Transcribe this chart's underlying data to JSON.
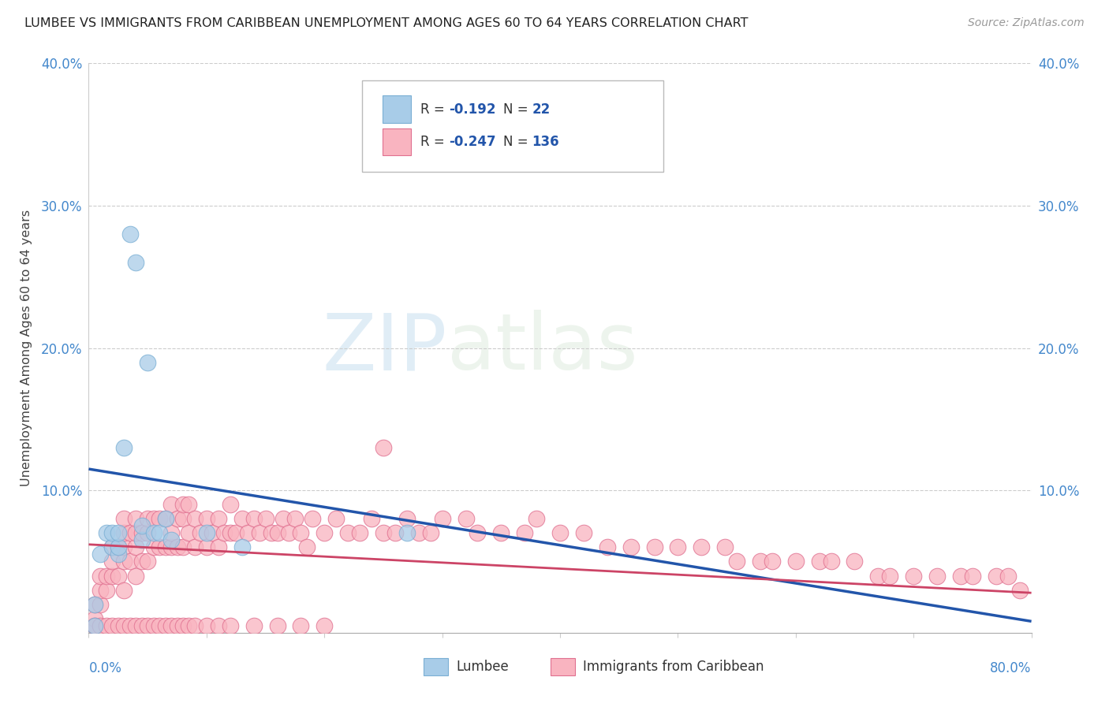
{
  "title": "LUMBEE VS IMMIGRANTS FROM CARIBBEAN UNEMPLOYMENT AMONG AGES 60 TO 64 YEARS CORRELATION CHART",
  "source": "Source: ZipAtlas.com",
  "ylabel": "Unemployment Among Ages 60 to 64 years",
  "xlim": [
    0.0,
    0.8
  ],
  "ylim": [
    0.0,
    0.4
  ],
  "yticks": [
    0.0,
    0.1,
    0.2,
    0.3,
    0.4
  ],
  "ytick_labels": [
    "",
    "10.0%",
    "20.0%",
    "30.0%",
    "40.0%"
  ],
  "lumbee_color_face": "#a8cce8",
  "lumbee_color_edge": "#7aafd4",
  "caribbean_color_face": "#f9b4c0",
  "caribbean_color_edge": "#e07090",
  "lumbee_line_color": "#2255aa",
  "caribbean_line_color": "#cc4466",
  "watermark_color": "#d0e8f4",
  "grid_color": "#cccccc",
  "background_color": "#ffffff",
  "lum_trend_x0": 0.0,
  "lum_trend_y0": 0.115,
  "lum_trend_x1": 0.8,
  "lum_trend_y1": 0.008,
  "car_trend_x0": 0.0,
  "car_trend_y0": 0.062,
  "car_trend_x1": 0.8,
  "car_trend_y1": 0.028,
  "lumbee_x": [
    0.005,
    0.005,
    0.01,
    0.015,
    0.02,
    0.02,
    0.025,
    0.025,
    0.025,
    0.03,
    0.035,
    0.04,
    0.045,
    0.045,
    0.05,
    0.055,
    0.06,
    0.065,
    0.07,
    0.1,
    0.13,
    0.27
  ],
  "lumbee_y": [
    0.005,
    0.02,
    0.055,
    0.07,
    0.06,
    0.07,
    0.055,
    0.06,
    0.07,
    0.13,
    0.28,
    0.26,
    0.065,
    0.075,
    0.19,
    0.07,
    0.07,
    0.08,
    0.065,
    0.07,
    0.06,
    0.07
  ],
  "caribbean_x": [
    0.005,
    0.005,
    0.005,
    0.01,
    0.01,
    0.01,
    0.015,
    0.015,
    0.02,
    0.02,
    0.02,
    0.025,
    0.025,
    0.03,
    0.03,
    0.03,
    0.03,
    0.03,
    0.035,
    0.035,
    0.04,
    0.04,
    0.04,
    0.04,
    0.045,
    0.045,
    0.05,
    0.05,
    0.05,
    0.055,
    0.055,
    0.06,
    0.06,
    0.065,
    0.065,
    0.07,
    0.07,
    0.07,
    0.075,
    0.075,
    0.08,
    0.08,
    0.08,
    0.085,
    0.085,
    0.09,
    0.09,
    0.095,
    0.1,
    0.1,
    0.105,
    0.11,
    0.11,
    0.115,
    0.12,
    0.12,
    0.125,
    0.13,
    0.135,
    0.14,
    0.145,
    0.15,
    0.155,
    0.16,
    0.165,
    0.17,
    0.175,
    0.18,
    0.185,
    0.19,
    0.2,
    0.21,
    0.22,
    0.23,
    0.24,
    0.25,
    0.26,
    0.27,
    0.28,
    0.29,
    0.3,
    0.32,
    0.33,
    0.35,
    0.37,
    0.38,
    0.4,
    0.42,
    0.44,
    0.46,
    0.48,
    0.5,
    0.52,
    0.54,
    0.55,
    0.57,
    0.58,
    0.6,
    0.62,
    0.63,
    0.65,
    0.67,
    0.68,
    0.7,
    0.72,
    0.74,
    0.75,
    0.77,
    0.78,
    0.79,
    0.005,
    0.01,
    0.015,
    0.02,
    0.025,
    0.03,
    0.035,
    0.04,
    0.045,
    0.05,
    0.055,
    0.06,
    0.065,
    0.07,
    0.075,
    0.08,
    0.085,
    0.09,
    0.1,
    0.11,
    0.12,
    0.14,
    0.16,
    0.18,
    0.2,
    0.25
  ],
  "caribbean_y": [
    0.005,
    0.01,
    0.02,
    0.02,
    0.03,
    0.04,
    0.03,
    0.04,
    0.04,
    0.05,
    0.06,
    0.04,
    0.06,
    0.03,
    0.05,
    0.06,
    0.07,
    0.08,
    0.05,
    0.07,
    0.04,
    0.06,
    0.07,
    0.08,
    0.05,
    0.07,
    0.05,
    0.07,
    0.08,
    0.06,
    0.08,
    0.06,
    0.08,
    0.06,
    0.08,
    0.06,
    0.07,
    0.09,
    0.06,
    0.08,
    0.06,
    0.08,
    0.09,
    0.07,
    0.09,
    0.06,
    0.08,
    0.07,
    0.06,
    0.08,
    0.07,
    0.06,
    0.08,
    0.07,
    0.07,
    0.09,
    0.07,
    0.08,
    0.07,
    0.08,
    0.07,
    0.08,
    0.07,
    0.07,
    0.08,
    0.07,
    0.08,
    0.07,
    0.06,
    0.08,
    0.07,
    0.08,
    0.07,
    0.07,
    0.08,
    0.07,
    0.07,
    0.08,
    0.07,
    0.07,
    0.08,
    0.08,
    0.07,
    0.07,
    0.07,
    0.08,
    0.07,
    0.07,
    0.06,
    0.06,
    0.06,
    0.06,
    0.06,
    0.06,
    0.05,
    0.05,
    0.05,
    0.05,
    0.05,
    0.05,
    0.05,
    0.04,
    0.04,
    0.04,
    0.04,
    0.04,
    0.04,
    0.04,
    0.04,
    0.03,
    0.005,
    0.005,
    0.005,
    0.005,
    0.005,
    0.005,
    0.005,
    0.005,
    0.005,
    0.005,
    0.005,
    0.005,
    0.005,
    0.005,
    0.005,
    0.005,
    0.005,
    0.005,
    0.005,
    0.005,
    0.005,
    0.005,
    0.005,
    0.005,
    0.005,
    0.13
  ]
}
